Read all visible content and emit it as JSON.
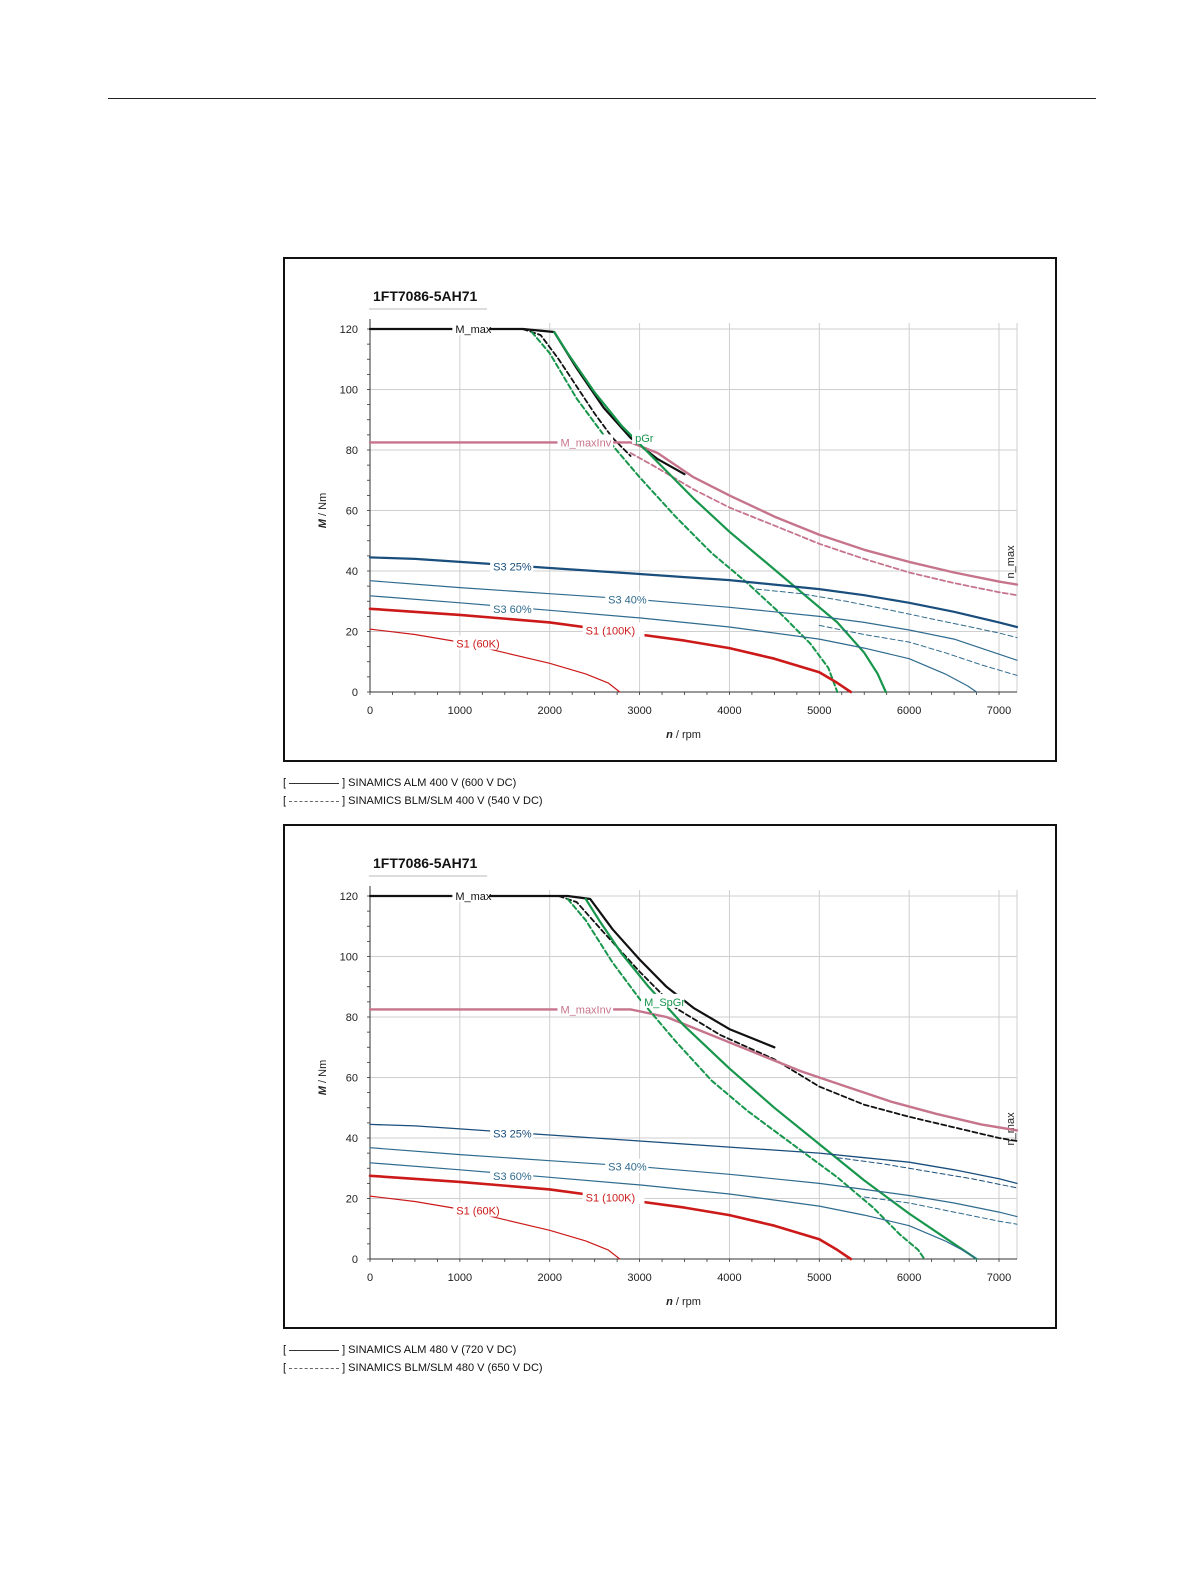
{
  "chart_data": [
    {
      "type": "line",
      "title": "1FT7086-5AH71",
      "xlabel": "n / rpm",
      "ylabel": "M / Nm",
      "xlim": [
        0,
        7200
      ],
      "ylim": [
        0,
        120
      ],
      "xticks": [
        "0",
        "1000",
        "2000",
        "3000",
        "4000",
        "5000",
        "6000",
        "7000"
      ],
      "yticks": [
        "0",
        "20",
        "40",
        "60",
        "80",
        "100",
        "120"
      ],
      "grid": true,
      "nmax_label": "n_max",
      "nmax_x": 7200,
      "series": [
        {
          "name": "M_max",
          "color": "#111111",
          "width": 2.2,
          "dash": false,
          "label_at": [
            950,
            120
          ],
          "x": [
            0,
            1700,
            2050,
            2300,
            2600,
            2900,
            3200,
            3500
          ],
          "y": [
            120,
            120,
            119,
            107,
            94,
            84,
            77,
            72
          ]
        },
        {
          "name": "",
          "color": "#111111",
          "width": 1.8,
          "dash": true,
          "x": [
            1700,
            1900,
            2100,
            2300,
            2500,
            2700,
            2900
          ],
          "y": [
            120,
            118,
            110,
            101,
            92,
            84,
            78
          ]
        },
        {
          "name": "M_maxInv",
          "color": "#c6748c",
          "width": 2.4,
          "dash": false,
          "label_at": [
            2120,
            82.5
          ],
          "x": [
            0,
            2900,
            3200,
            3600,
            4000,
            4500,
            5000,
            5500,
            6000,
            6500,
            7000,
            7200
          ],
          "y": [
            82.5,
            82.5,
            79,
            71,
            65,
            58,
            52,
            47,
            43,
            39.5,
            36.5,
            35.5
          ]
        },
        {
          "name": "",
          "color": "#c6748c",
          "width": 1.8,
          "dash": true,
          "x": [
            2900,
            3200,
            3600,
            4000,
            4500,
            5000,
            5500,
            6000,
            6500,
            7000,
            7200
          ],
          "y": [
            79,
            74,
            67,
            61,
            55,
            49,
            44,
            39.5,
            36,
            33,
            32
          ]
        },
        {
          "name": "M_SpGr",
          "color": "#17964c",
          "width": 2.2,
          "dash": false,
          "label_pre": "",
          "label_text": "pGr",
          "label_at": [
            2950,
            84
          ],
          "x": [
            2050,
            2200,
            2500,
            2800,
            3200,
            3600,
            4000,
            4400,
            4800,
            5200,
            5500,
            5650,
            5740
          ],
          "y": [
            119,
            112,
            99,
            88,
            76,
            64,
            53,
            43,
            33,
            23,
            13,
            6,
            0
          ]
        },
        {
          "name": "",
          "color": "#17964c",
          "width": 2.0,
          "dash": true,
          "x": [
            1800,
            2000,
            2300,
            2600,
            3000,
            3400,
            3800,
            4200,
            4600,
            4900,
            5100,
            5200
          ],
          "y": [
            119,
            112,
            97,
            85,
            71,
            58,
            46,
            36,
            25,
            16,
            8,
            0
          ]
        },
        {
          "name": "S3 25%",
          "color": "#1a4e7c",
          "width": 2.2,
          "dash": false,
          "label_at": [
            1370,
            41.5
          ],
          "x": [
            0,
            500,
            1000,
            1500,
            2000,
            2500,
            3000,
            3500,
            4000,
            4500,
            5000,
            5500,
            6000,
            6500,
            7000,
            7200
          ],
          "y": [
            44.5,
            44,
            43,
            42,
            41,
            40,
            39,
            38,
            37,
            35.5,
            34,
            32,
            29.5,
            26.5,
            23,
            21.5
          ]
        },
        {
          "name": "S3 40%",
          "color": "#2f6b8e",
          "width": 1.2,
          "dash": false,
          "label_at": [
            2650,
            30.5
          ],
          "x": [
            0,
            1000,
            2000,
            3000,
            4000,
            4500,
            5000,
            5500,
            6000,
            6500,
            7000,
            7200
          ],
          "y": [
            36.8,
            34.5,
            32.5,
            30.5,
            28,
            26.5,
            25,
            23,
            20.5,
            17.5,
            12.5,
            10.5
          ]
        },
        {
          "name": "",
          "color": "#2f6b8e",
          "width": 1.0,
          "dash": true,
          "x": [
            4300,
            4800,
            5300,
            5800,
            6200,
            6600,
            7000,
            7200
          ],
          "y": [
            34,
            32.5,
            30,
            27,
            24.5,
            22,
            19.5,
            18
          ]
        },
        {
          "name": "S3 60%",
          "color": "#2f6b8e",
          "width": 1.2,
          "dash": false,
          "label_at": [
            1370,
            27.5
          ],
          "x": [
            0,
            1000,
            2000,
            3000,
            4000,
            5000,
            5500,
            6000,
            6400,
            6650,
            6750
          ],
          "y": [
            31.8,
            29.5,
            27,
            24.5,
            21.5,
            17.5,
            14.5,
            11,
            6,
            2,
            0
          ]
        },
        {
          "name": "",
          "color": "#2f6b8e",
          "width": 1.0,
          "dash": true,
          "x": [
            5000,
            5500,
            6000,
            6400,
            6800,
            7200
          ],
          "y": [
            22,
            19,
            16.5,
            13,
            9,
            5.5
          ]
        },
        {
          "name": "S1 (100K)",
          "color": "#cc1a1a",
          "width": 2.6,
          "dash": false,
          "label_at": [
            2400,
            20.3
          ],
          "x": [
            0,
            1000,
            2000,
            2500,
            3000,
            3500,
            4000,
            4500,
            5000,
            5200,
            5350
          ],
          "y": [
            27.5,
            25.5,
            23,
            21,
            19,
            17,
            14.5,
            11,
            6.5,
            3,
            0
          ]
        },
        {
          "name": "S1 (60K)",
          "color": "#cc1a1a",
          "width": 1.2,
          "dash": false,
          "label_at": [
            960,
            16
          ],
          "x": [
            0,
            500,
            1000,
            1500,
            2000,
            2400,
            2650,
            2780
          ],
          "y": [
            20.8,
            19,
            16.5,
            13,
            9.5,
            6,
            3,
            0
          ]
        }
      ]
    },
    {
      "type": "line",
      "title": "1FT7086-5AH71",
      "xlabel": "n / rpm",
      "ylabel": "M / Nm",
      "xlim": [
        0,
        7200
      ],
      "ylim": [
        0,
        120
      ],
      "xticks": [
        "0",
        "1000",
        "2000",
        "3000",
        "4000",
        "5000",
        "6000",
        "7000"
      ],
      "yticks": [
        "0",
        "20",
        "40",
        "60",
        "80",
        "100",
        "120"
      ],
      "grid": true,
      "nmax_label": "n_max",
      "nmax_x": 7200,
      "series": [
        {
          "name": "M_max",
          "color": "#111111",
          "width": 2.2,
          "dash": false,
          "label_at": [
            950,
            120
          ],
          "x": [
            0,
            2200,
            2450,
            2700,
            3000,
            3300,
            3600,
            4000,
            4500
          ],
          "y": [
            120,
            120,
            119,
            109,
            99,
            90,
            83,
            76,
            70
          ]
        },
        {
          "name": "",
          "color": "#111111",
          "width": 1.8,
          "dash": true,
          "x": [
            2100,
            2300,
            2600,
            3000,
            3400,
            3900,
            4500,
            5000,
            5500,
            6000,
            6500,
            7000,
            7200
          ],
          "y": [
            120,
            118,
            108,
            95,
            83,
            74,
            66,
            57,
            51,
            47,
            43.5,
            40,
            39
          ]
        },
        {
          "name": "M_maxInv",
          "color": "#c6748c",
          "width": 2.4,
          "dash": false,
          "label_at": [
            2120,
            82.5
          ],
          "x": [
            0,
            2900,
            3300,
            3800,
            4300,
            4800,
            5300,
            5800,
            6300,
            6800,
            7200
          ],
          "y": [
            82.5,
            82.5,
            80,
            74,
            68,
            62,
            57,
            52,
            48,
            44.5,
            42.5
          ]
        },
        {
          "name": "M_SpGr",
          "color": "#17964c",
          "width": 2.2,
          "dash": false,
          "label_text": "M_SpGr",
          "label_at": [
            3050,
            85
          ],
          "x": [
            2400,
            2550,
            2800,
            3100,
            3500,
            4000,
            4500,
            5000,
            5500,
            6000,
            6400,
            6650,
            6750
          ],
          "y": [
            119,
            112,
            101,
            90,
            77,
            63,
            50,
            38,
            26,
            15,
            7,
            2,
            0
          ]
        },
        {
          "name": "",
          "color": "#17964c",
          "width": 2.0,
          "dash": true,
          "x": [
            2200,
            2400,
            2700,
            3000,
            3400,
            3800,
            4200,
            4700,
            5200,
            5600,
            5900,
            6100,
            6170
          ],
          "y": [
            119,
            112,
            98,
            86,
            72,
            59,
            49,
            38,
            27,
            17,
            8,
            3,
            0
          ]
        },
        {
          "name": "S3 25%",
          "color": "#1a4e7c",
          "width": 1.3,
          "dash": false,
          "label_at": [
            1370,
            41.5
          ],
          "x": [
            0,
            500,
            1000,
            2000,
            3000,
            4000,
            5000,
            5500,
            6000,
            6500,
            7000,
            7200
          ],
          "y": [
            44.5,
            44,
            43,
            41,
            39,
            37,
            35,
            33.5,
            32,
            29.5,
            26.5,
            25
          ]
        },
        {
          "name": "",
          "color": "#1a4e7c",
          "width": 1.0,
          "dash": true,
          "x": [
            5200,
            5700,
            6200,
            6700,
            7200
          ],
          "y": [
            33.5,
            31.5,
            29,
            26.5,
            23.5
          ]
        },
        {
          "name": "S3 40%",
          "color": "#2f6b8e",
          "width": 1.2,
          "dash": false,
          "label_at": [
            2650,
            30.5
          ],
          "x": [
            0,
            1000,
            2000,
            3000,
            4000,
            4500,
            5000,
            5500,
            6000,
            6500,
            7000,
            7200
          ],
          "y": [
            36.8,
            34.5,
            32.5,
            30.5,
            28,
            26.5,
            25,
            23,
            21,
            18.5,
            15.5,
            14
          ]
        },
        {
          "name": "",
          "color": "#2f6b8e",
          "width": 1.0,
          "dash": true,
          "x": [
            5500,
            6000,
            6500,
            7000,
            7200
          ],
          "y": [
            20.5,
            18.5,
            15.5,
            12.5,
            11.5
          ]
        },
        {
          "name": "S3 60%",
          "color": "#2f6b8e",
          "width": 1.2,
          "dash": false,
          "label_at": [
            1370,
            27.5
          ],
          "x": [
            0,
            1000,
            2000,
            3000,
            4000,
            5000,
            5500,
            6000,
            6400,
            6650,
            6750
          ],
          "y": [
            31.8,
            29.5,
            27,
            24.5,
            21.5,
            17.5,
            14.5,
            11,
            6,
            2,
            0
          ]
        },
        {
          "name": "S1 (100K)",
          "color": "#cc1a1a",
          "width": 2.6,
          "dash": false,
          "label_at": [
            2400,
            20.3
          ],
          "x": [
            0,
            1000,
            2000,
            2500,
            3000,
            3500,
            4000,
            4500,
            5000,
            5200,
            5350
          ],
          "y": [
            27.5,
            25.5,
            23,
            21,
            19,
            17,
            14.5,
            11,
            6.5,
            3,
            0
          ]
        },
        {
          "name": "S1 (60K)",
          "color": "#cc1a1a",
          "width": 1.2,
          "dash": false,
          "label_at": [
            960,
            16
          ],
          "x": [
            0,
            500,
            1000,
            1500,
            2000,
            2400,
            2650,
            2780
          ],
          "y": [
            20.8,
            19,
            16.5,
            13,
            9.5,
            6,
            3,
            0
          ]
        }
      ]
    }
  ],
  "captions": [
    {
      "solid_open": "[",
      "solid_text": "] SINAMICS ALM 400 V (600 V DC)",
      "dashed_open": "[",
      "dashed_text": "] SINAMICS BLM/SLM 400 V (540 V DC)"
    },
    {
      "solid_open": "[",
      "solid_text": "] SINAMICS ALM 480 V (720 V DC)",
      "dashed_open": "[",
      "dashed_text": "] SINAMICS BLM/SLM 480 V (650 V DC)"
    }
  ]
}
